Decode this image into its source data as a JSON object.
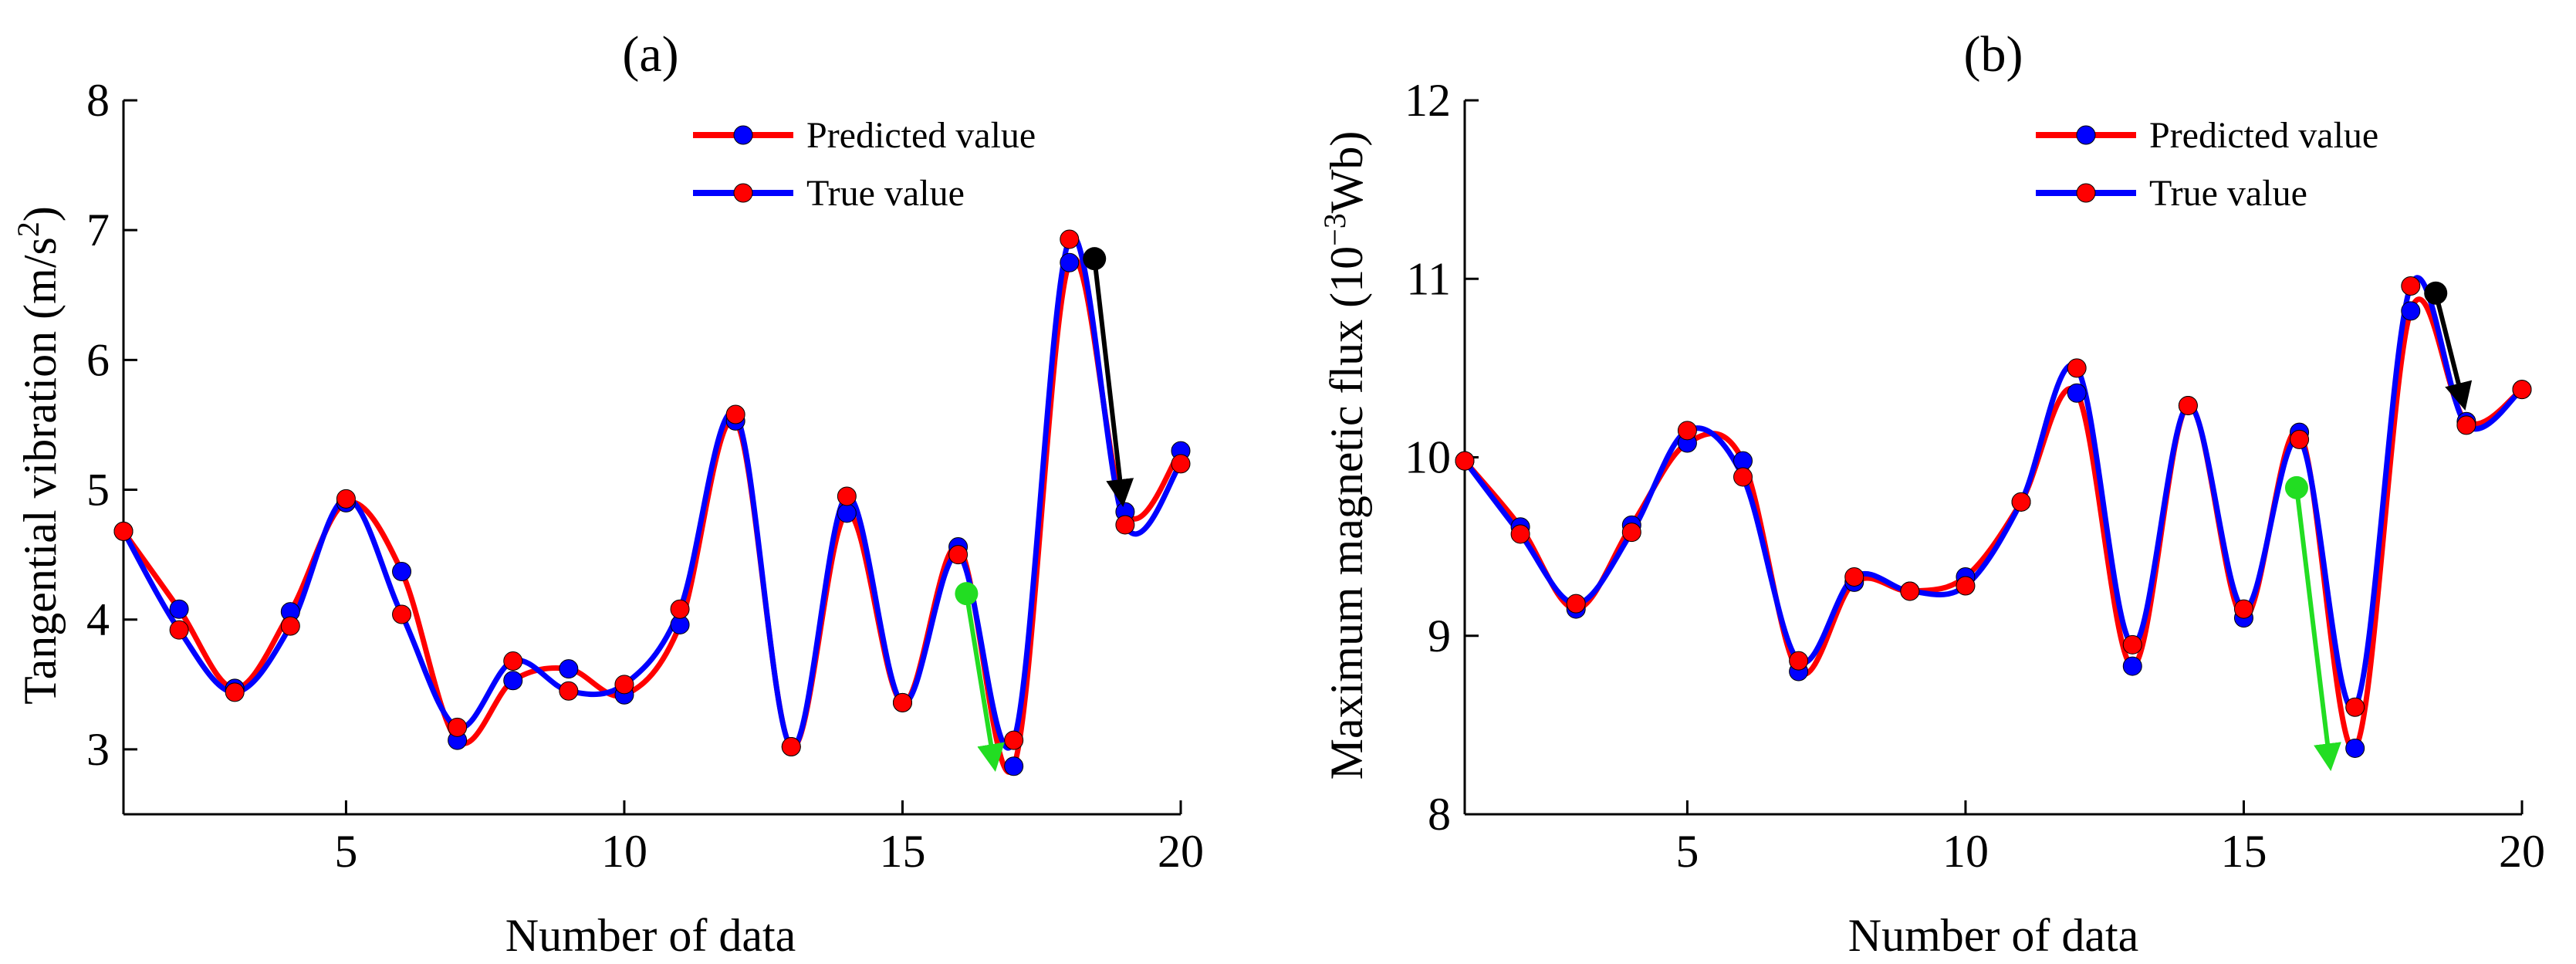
{
  "colors": {
    "predicted": "#ff0000",
    "true": "#0000ff",
    "arrow_black": "#000000",
    "arrow_green": "#22dd22"
  },
  "chart_data": [
    {
      "type": "line",
      "panel_label": "(a)",
      "xlabel": "Number of data",
      "ylabel_text": "Tangential vibration (m/s",
      "ylabel_sup": "2",
      "ylabel_end": ")",
      "xlim": [
        1,
        20
      ],
      "ylim": [
        2.5,
        8
      ],
      "xticks": [
        5,
        10,
        15,
        20
      ],
      "yticks": [
        3,
        4,
        5,
        6,
        7,
        8
      ],
      "x": [
        1,
        2,
        3,
        4,
        5,
        6,
        7,
        8,
        9,
        10,
        11,
        12,
        13,
        14,
        15,
        16,
        17,
        18,
        19,
        20
      ],
      "legend": [
        "Predicted value",
        "True value"
      ],
      "series": [
        {
          "name": "Predicted value",
          "line_color": "#ff0000",
          "marker_color": "#0000ff",
          "values": [
            4.68,
            4.08,
            3.47,
            4.06,
            4.9,
            4.37,
            3.07,
            3.53,
            3.62,
            3.42,
            3.96,
            5.53,
            3.02,
            4.82,
            3.36,
            4.56,
            2.87,
            6.75,
            4.83,
            5.3
          ]
        },
        {
          "name": "True value",
          "line_color": "#0000ff",
          "marker_color": "#ff0000",
          "values": [
            4.68,
            3.92,
            3.44,
            3.95,
            4.93,
            4.04,
            3.17,
            3.68,
            3.45,
            3.5,
            4.08,
            5.58,
            3.02,
            4.95,
            3.36,
            4.5,
            3.07,
            6.93,
            4.73,
            5.2
          ]
        }
      ],
      "arrows": [
        {
          "color": "#000000",
          "from": [
            18.45,
            6.78
          ],
          "to": [
            18.95,
            4.92
          ]
        },
        {
          "color": "#22dd22",
          "from": [
            16.15,
            4.2
          ],
          "to": [
            16.65,
            2.88
          ]
        }
      ]
    },
    {
      "type": "line",
      "panel_label": "(b)",
      "xlabel": "Number of data",
      "ylabel_text": "Maximum magnetic flux (10",
      "ylabel_sup": "−3",
      "ylabel_end": "Wb)",
      "xlim": [
        1,
        20
      ],
      "ylim": [
        8,
        12
      ],
      "xticks": [
        5,
        10,
        15,
        20
      ],
      "yticks": [
        8,
        9,
        10,
        11,
        12
      ],
      "x": [
        1,
        2,
        3,
        4,
        5,
        6,
        7,
        8,
        9,
        10,
        11,
        12,
        13,
        14,
        15,
        16,
        17,
        18,
        19,
        20
      ],
      "legend": [
        "Predicted value",
        "True value"
      ],
      "series": [
        {
          "name": "Predicted value",
          "line_color": "#ff0000",
          "marker_color": "#0000ff",
          "values": [
            9.98,
            9.61,
            9.15,
            9.62,
            10.08,
            9.98,
            8.8,
            9.3,
            9.25,
            9.33,
            9.75,
            10.36,
            8.83,
            10.29,
            9.1,
            10.14,
            8.37,
            10.82,
            10.2,
            10.38
          ]
        },
        {
          "name": "True value",
          "line_color": "#0000ff",
          "marker_color": "#ff0000",
          "values": [
            9.98,
            9.57,
            9.18,
            9.58,
            10.15,
            9.89,
            8.86,
            9.33,
            9.25,
            9.28,
            9.75,
            10.5,
            8.95,
            10.29,
            9.15,
            10.1,
            8.6,
            10.96,
            10.18,
            10.38
          ]
        }
      ],
      "arrows": [
        {
          "color": "#000000",
          "from": [
            18.45,
            10.92
          ],
          "to": [
            18.95,
            10.3
          ]
        },
        {
          "color": "#22dd22",
          "from": [
            15.95,
            9.83
          ],
          "to": [
            16.55,
            8.28
          ]
        }
      ]
    }
  ]
}
